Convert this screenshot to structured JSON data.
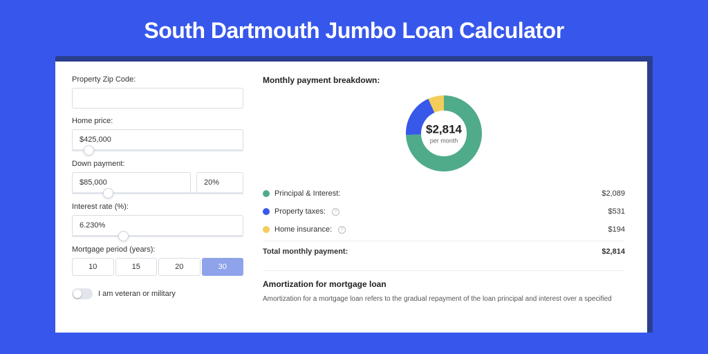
{
  "page_title": "South Dartmouth Jumbo Loan Calculator",
  "colors": {
    "page_bg": "#3757ec",
    "card_shadow": "#2a3e8f",
    "principal": "#4fab8a",
    "taxes": "#3858e9",
    "insurance": "#f3cd5b"
  },
  "form": {
    "zip_label": "Property Zip Code:",
    "zip_value": "",
    "home_price_label": "Home price:",
    "home_price_value": "$425,000",
    "home_price_thumb_pct": 7,
    "down_payment_label": "Down payment:",
    "down_payment_value": "$85,000",
    "down_payment_pct": "20%",
    "down_payment_thumb_pct": 18,
    "interest_label": "Interest rate (%):",
    "interest_value": "6.230%",
    "interest_thumb_pct": 27,
    "period_label": "Mortgage period (years):",
    "periods": [
      {
        "label": "10",
        "selected": false
      },
      {
        "label": "15",
        "selected": false
      },
      {
        "label": "20",
        "selected": false
      },
      {
        "label": "30",
        "selected": true
      }
    ],
    "veteran_label": "I am veteran or military"
  },
  "breakdown": {
    "title": "Monthly payment breakdown:",
    "center_amount": "$2,814",
    "center_sub": "per month",
    "donut": {
      "radius": 44,
      "stroke": 22,
      "segments": [
        {
          "color_key": "principal",
          "fraction": 0.742
        },
        {
          "color_key": "taxes",
          "fraction": 0.189
        },
        {
          "color_key": "insurance",
          "fraction": 0.069
        }
      ]
    },
    "rows": [
      {
        "label": "Principal & Interest:",
        "color_key": "principal",
        "info": false,
        "value": "$2,089"
      },
      {
        "label": "Property taxes:",
        "color_key": "taxes",
        "info": true,
        "value": "$531"
      },
      {
        "label": "Home insurance:",
        "color_key": "insurance",
        "info": true,
        "value": "$194"
      }
    ],
    "total_label": "Total monthly payment:",
    "total_value": "$2,814"
  },
  "amortization": {
    "title": "Amortization for mortgage loan",
    "text": "Amortization for a mortgage loan refers to the gradual repayment of the loan principal and interest over a specified"
  }
}
